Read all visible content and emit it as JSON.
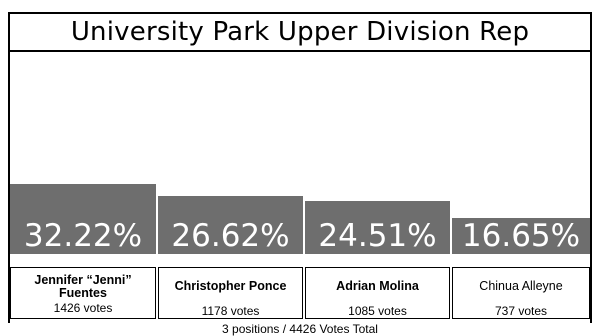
{
  "title": "University Park Upper Division Rep",
  "summary": "3 positions / 4426 Votes Total",
  "chart_data": {
    "type": "bar",
    "title": "University Park Upper Division Rep",
    "categories": [
      "Jennifer “Jenni” Fuentes",
      "Christopher Ponce",
      "Adrian Molina",
      "Chinua Alleyne"
    ],
    "values": [
      32.22,
      26.62,
      24.51,
      16.65
    ],
    "value_labels": [
      "32.22%",
      "26.62%",
      "24.51%",
      "16.65%"
    ],
    "votes": [
      "1426 votes",
      "1178 votes",
      "1085 votes",
      "737 votes"
    ],
    "bold_names": [
      true,
      true,
      true,
      false
    ],
    "bar_color": "#6e6e6e",
    "grid": false
  }
}
